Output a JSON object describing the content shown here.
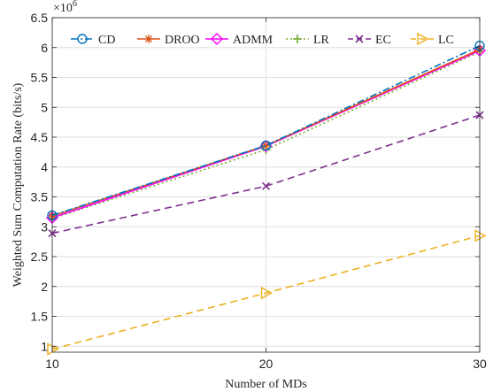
{
  "chart_data": {
    "type": "line",
    "title": "",
    "xlabel": "Number of MDs",
    "ylabel": "Weighted Sum Computation Rate (bits/s)",
    "y_exponent_label": "×10",
    "y_exponent_power": "6",
    "x": [
      10,
      20,
      30
    ],
    "xlim": [
      10,
      30
    ],
    "ylim": [
      0.9,
      6.5
    ],
    "x_ticks": [
      "10",
      "20",
      "30"
    ],
    "y_ticks": [
      "1",
      "1.5",
      "2",
      "2.5",
      "3",
      "3.5",
      "4",
      "4.5",
      "5",
      "5.5",
      "6",
      "6.5"
    ],
    "grid": true,
    "legend_position": "top",
    "series": [
      {
        "name": "CD",
        "color": "#0072BD",
        "dash": "dash-dot",
        "marker": "circle",
        "values": [
          3.19,
          4.36,
          6.03
        ]
      },
      {
        "name": "DROO",
        "color": "#D95319",
        "dash": "solid",
        "marker": "asterisk",
        "values": [
          3.18,
          4.36,
          5.97
        ]
      },
      {
        "name": "ADMM",
        "color": "#FF00FF",
        "dash": "solid",
        "marker": "diamond",
        "values": [
          3.15,
          4.35,
          5.95
        ]
      },
      {
        "name": "LR",
        "color": "#77AC30",
        "dash": "dotted",
        "marker": "plus",
        "values": [
          3.14,
          4.29,
          5.93
        ]
      },
      {
        "name": "EC",
        "color": "#7E2F8E",
        "dash": "dashed",
        "marker": "x",
        "values": [
          2.89,
          3.68,
          4.87
        ]
      },
      {
        "name": "LC",
        "color": "#EDB120",
        "dash": "dashed",
        "marker": "triangle-right",
        "values": [
          0.95,
          1.89,
          2.85
        ]
      }
    ]
  }
}
